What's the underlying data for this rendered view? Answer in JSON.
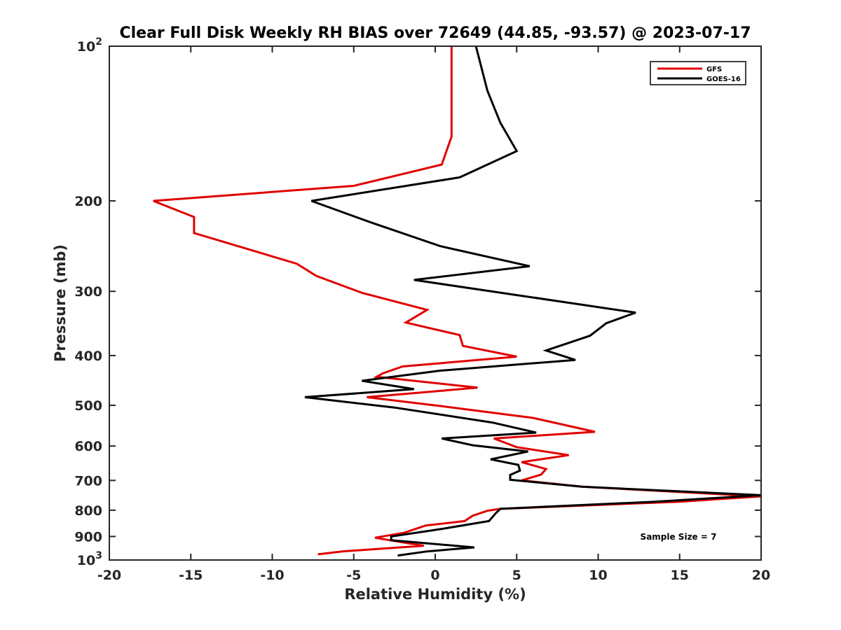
{
  "chart_data": {
    "type": "line",
    "title": "Clear Full Disk Weekly RH BIAS over 72649 (44.85, -93.57) @ 2023-07-17",
    "xlabel": "Relative Humidity (%)",
    "ylabel": "Pressure (mb)",
    "xlim": [
      -20,
      20
    ],
    "ylim": [
      100,
      1000
    ],
    "y_scale": "log",
    "y_reversed": true,
    "grid": false,
    "legend_position": "top-right",
    "x_ticks": [
      -20,
      -15,
      -10,
      -5,
      0,
      5,
      10,
      15,
      20
    ],
    "y_ticks": [
      {
        "value": 100,
        "label": "10",
        "sup": "2"
      },
      {
        "value": 200,
        "label": "200",
        "sup": ""
      },
      {
        "value": 300,
        "label": "300",
        "sup": ""
      },
      {
        "value": 400,
        "label": "400",
        "sup": ""
      },
      {
        "value": 500,
        "label": "500",
        "sup": ""
      },
      {
        "value": 600,
        "label": "600",
        "sup": ""
      },
      {
        "value": 700,
        "label": "700",
        "sup": ""
      },
      {
        "value": 800,
        "label": "800",
        "sup": ""
      },
      {
        "value": 900,
        "label": "900",
        "sup": ""
      },
      {
        "value": 1000,
        "label": "10",
        "sup": "3"
      }
    ],
    "annotation": "Sample Size = 7",
    "series": [
      {
        "name": "GFS",
        "color": "#e00000",
        "points": [
          [
            1.0,
            100
          ],
          [
            1.0,
            150
          ],
          [
            0.4,
            170
          ],
          [
            -5.0,
            187
          ],
          [
            -17.3,
            200
          ],
          [
            -14.8,
            215
          ],
          [
            -14.8,
            231
          ],
          [
            -8.5,
            265
          ],
          [
            -7.3,
            280
          ],
          [
            -4.5,
            302
          ],
          [
            -0.5,
            326
          ],
          [
            -1.8,
            345
          ],
          [
            1.5,
            365
          ],
          [
            1.7,
            383
          ],
          [
            5.0,
            402
          ],
          [
            -2.0,
            420
          ],
          [
            -3.2,
            433
          ],
          [
            -3.6,
            440
          ],
          [
            2.6,
            462
          ],
          [
            -4.2,
            482
          ],
          [
            0.4,
            502
          ],
          [
            6.0,
            529
          ],
          [
            9.8,
            563
          ],
          [
            3.6,
            580
          ],
          [
            5.0,
            603
          ],
          [
            8.2,
            625
          ],
          [
            5.3,
            645
          ],
          [
            6.8,
            665
          ],
          [
            6.5,
            682
          ],
          [
            5.3,
            700
          ],
          [
            9.0,
            720
          ],
          [
            20.0,
            752
          ],
          [
            15.0,
            770
          ],
          [
            4.0,
            795
          ],
          [
            3.2,
            802
          ],
          [
            2.3,
            820
          ],
          [
            1.8,
            840
          ],
          [
            -0.6,
            857
          ],
          [
            -1.9,
            885
          ],
          [
            -3.7,
            905
          ],
          [
            -1.9,
            925
          ],
          [
            -0.7,
            938
          ],
          [
            -5.7,
            962
          ],
          [
            -7.2,
            975
          ]
        ]
      },
      {
        "name": "GOES-16",
        "color": "#000000",
        "points": [
          [
            2.5,
            100
          ],
          [
            3.2,
            122
          ],
          [
            4.0,
            141
          ],
          [
            5.0,
            160
          ],
          [
            1.5,
            180
          ],
          [
            -7.6,
            200
          ],
          [
            -4.0,
            220
          ],
          [
            0.3,
            245
          ],
          [
            5.8,
            268
          ],
          [
            -1.3,
            285
          ],
          [
            12.3,
            330
          ],
          [
            10.5,
            346
          ],
          [
            9.5,
            366
          ],
          [
            6.8,
            391
          ],
          [
            8.6,
            408
          ],
          [
            0.3,
            428
          ],
          [
            -4.5,
            448
          ],
          [
            -1.3,
            465
          ],
          [
            -8.0,
            482
          ],
          [
            -2.5,
            505
          ],
          [
            3.5,
            540
          ],
          [
            6.2,
            565
          ],
          [
            0.4,
            580
          ],
          [
            2.3,
            598
          ],
          [
            5.7,
            615
          ],
          [
            3.4,
            637
          ],
          [
            5.1,
            653
          ],
          [
            5.2,
            670
          ],
          [
            4.6,
            683
          ],
          [
            4.6,
            698
          ],
          [
            9.0,
            720
          ],
          [
            20.0,
            748
          ],
          [
            13.5,
            770
          ],
          [
            4.0,
            795
          ],
          [
            3.7,
            812
          ],
          [
            3.3,
            840
          ],
          [
            0.4,
            870
          ],
          [
            -2.7,
            900
          ],
          [
            -2.7,
            915
          ],
          [
            2.4,
            945
          ],
          [
            -0.5,
            962
          ],
          [
            -2.3,
            980
          ]
        ]
      }
    ]
  }
}
